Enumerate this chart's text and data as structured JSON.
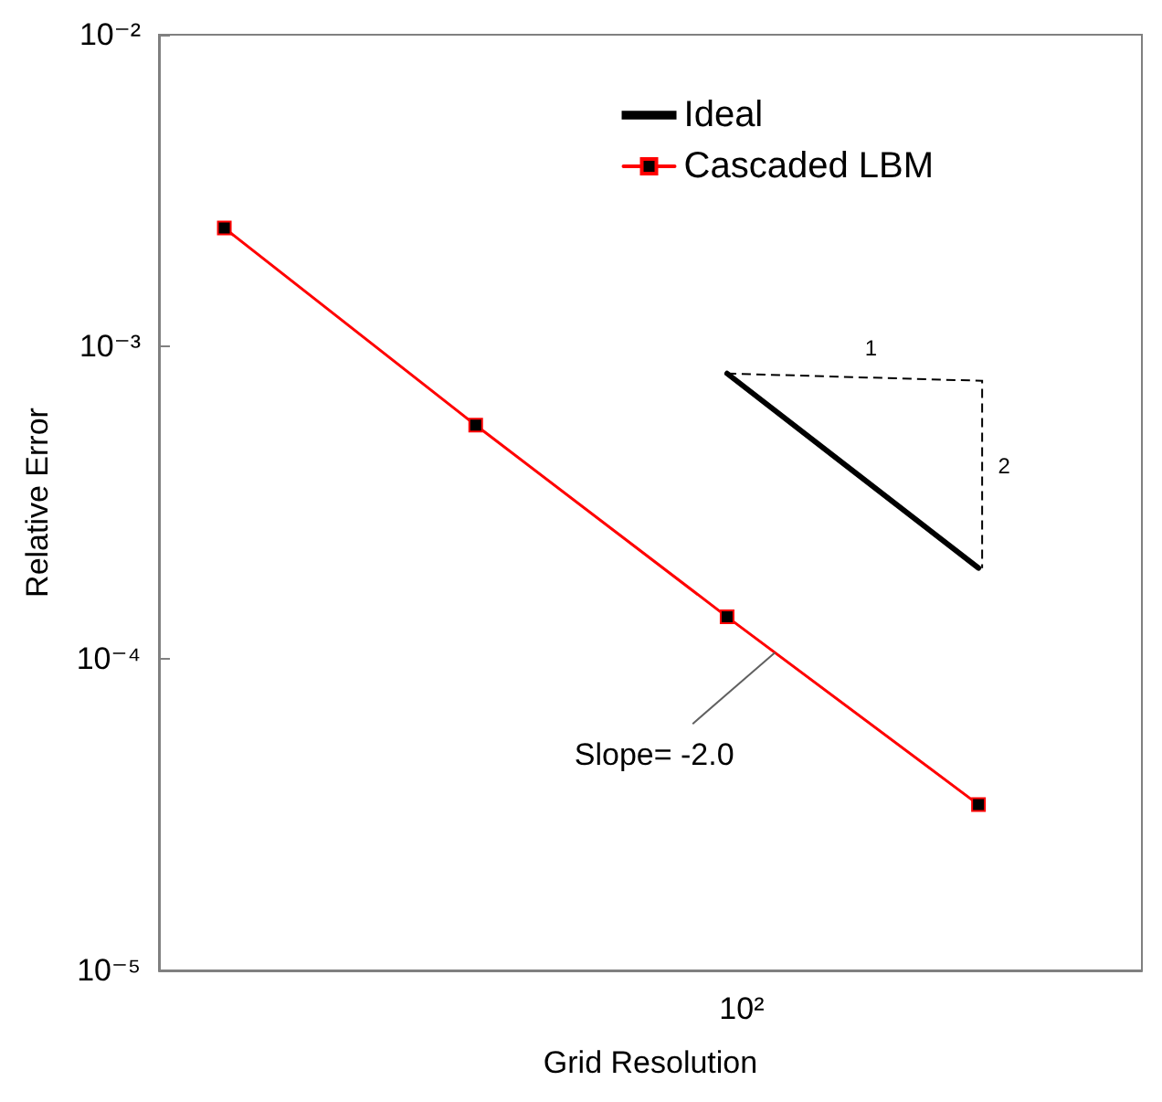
{
  "chart_data": {
    "type": "line",
    "xlabel": "Grid Resolution",
    "ylabel": "Relative Error",
    "log": "y",
    "grid": false,
    "legend": "top right",
    "marker": "square",
    "line_style": "solid",
    "categories": [
      null,
      null,
      null,
      null
    ],
    "ylim": [
      1e-05,
      0.01
    ],
    "yticks": [
      {
        "value": 1e-05,
        "label": "10⁻⁵"
      },
      {
        "value": 0.0001,
        "label": "10⁻⁴"
      },
      {
        "value": 0.001,
        "label": "10⁻³"
      },
      {
        "value": 0.01,
        "label": "10⁻²"
      }
    ],
    "series": [
      {
        "name": "Ideal",
        "color": "#000000",
        "marker": "none",
        "values": [
          null,
          null,
          0.00082,
          0.000195
        ]
      },
      {
        "name": "Cascaded LBM",
        "color": "#ff0000",
        "values": [
          0.0024,
          0.00056,
          0.000136,
          3.4e-05
        ]
      }
    ],
    "annotations": [
      "1",
      "2",
      "Slope= -2.0",
      "10²"
    ]
  }
}
